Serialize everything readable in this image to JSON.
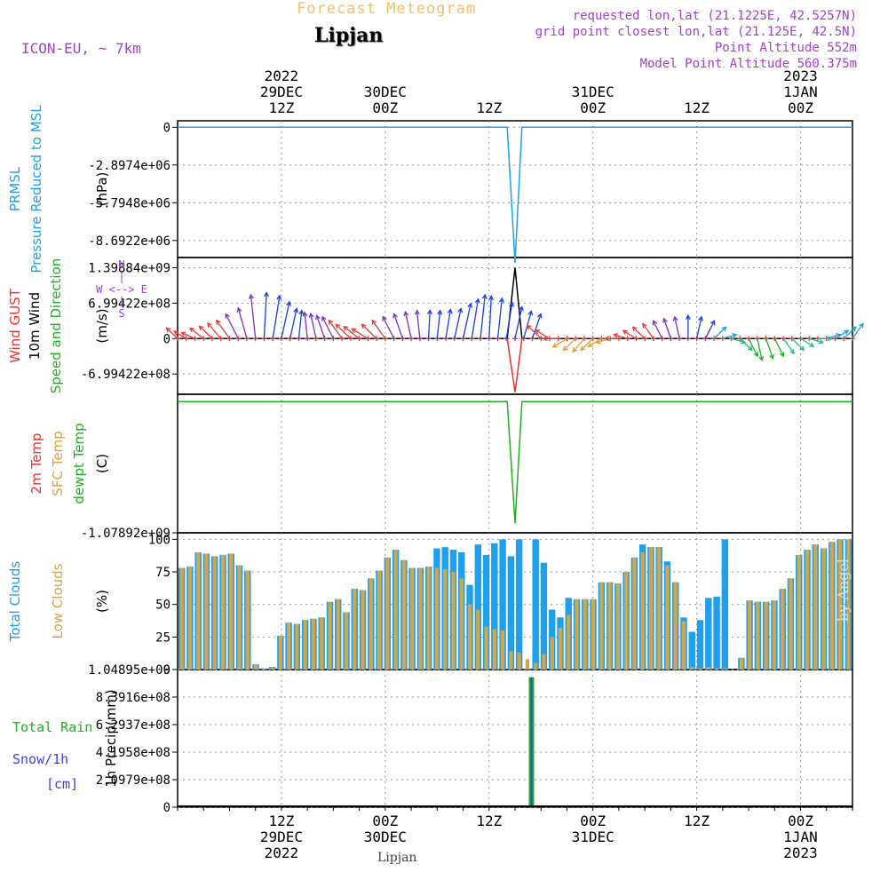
{
  "header": {
    "title": "Forecast Meteogram",
    "location": "Lipjan",
    "model": "ICON-EU, ~ 7km",
    "requested": "requested lon,lat (21.1225E, 42.5257N)",
    "closest": "grid point closest lon,lat (21.125E, 42.5N)",
    "point_alt": "Point Altitude 552m",
    "model_alt": "Model Point Altitude 560.375m",
    "footer_location": "Lipjan",
    "watermark": "by Angel"
  },
  "colors": {
    "pressure": "#1fa0ef",
    "gust": "#ef3030",
    "wind": "#000000",
    "dir": "#20b020",
    "dewpt": "#20b020",
    "total_clouds": "#1fa0ef",
    "low_clouds": "#d3a64a",
    "rain": "#20b020",
    "snow": "#4040e0",
    "compass": "#a040d0"
  },
  "time_axis": {
    "top_labels": [
      {
        "t": 12,
        "lines": [
          "2022",
          "29DEC",
          "12Z"
        ]
      },
      {
        "t": 24,
        "lines": [
          "30DEC",
          "00Z"
        ]
      },
      {
        "t": 36,
        "lines": [
          "12Z"
        ]
      },
      {
        "t": 48,
        "lines": [
          "31DEC",
          "00Z"
        ]
      },
      {
        "t": 60,
        "lines": [
          "12Z"
        ]
      },
      {
        "t": 72,
        "lines": [
          "2023",
          "1JAN",
          "00Z"
        ]
      }
    ],
    "bottom_labels": [
      {
        "t": 12,
        "lines": [
          "12Z",
          "29DEC",
          "2022"
        ]
      },
      {
        "t": 24,
        "lines": [
          "00Z",
          "30DEC"
        ]
      },
      {
        "t": 36,
        "lines": [
          "12Z"
        ]
      },
      {
        "t": 48,
        "lines": [
          "00Z",
          "31DEC"
        ]
      },
      {
        "t": 60,
        "lines": [
          "12Z"
        ]
      },
      {
        "t": 72,
        "lines": [
          "00Z",
          "1JAN",
          "2023"
        ]
      }
    ]
  },
  "chart_data": [
    {
      "type": "line",
      "title": "PRMSL Pressure Reduced to MSL",
      "side_labels": [
        "PRMSL",
        "Pressure Reduced to MSL"
      ],
      "ylabel": "(hPa)",
      "ylim": [
        -10000000,
        500000
      ],
      "yticks": [
        0,
        -2897400,
        -5794800,
        -8692200
      ],
      "ytick_labels": [
        "0",
        "-2.8974e+06",
        "-5.7948e+06",
        "-8.6922e+06"
      ],
      "x": [
        0,
        38.1,
        39,
        39.8,
        78
      ],
      "values": [
        0,
        0,
        -10400000,
        0,
        0
      ]
    },
    {
      "type": "line",
      "title": "Wind GUST 10m Wind Speed and Direction",
      "side_labels": [
        "Wind GUST",
        "10m Wind",
        "Speed and Direction"
      ],
      "ylabel": "(m/s)",
      "compass": [
        "N",
        "W <--> E",
        "S"
      ],
      "ylim": [
        -1100000000,
        1600000000
      ],
      "yticks": [
        1398840000,
        699422000,
        0,
        -699422000
      ],
      "ytick_labels": [
        "1.39884e+09",
        "6.99422e+08",
        "0",
        "-6.99422e+08"
      ],
      "gust_x": [
        0,
        38.1,
        39,
        39.8,
        78
      ],
      "gust_values": [
        0,
        0,
        -1060000000,
        0,
        0
      ],
      "wind_x": [
        0,
        38.1,
        39,
        39.8,
        78
      ],
      "wind_values": [
        0,
        0,
        1398840000,
        0,
        0
      ],
      "wind_dir_deg": [
        300,
        290,
        285,
        295,
        300,
        305,
        310,
        320,
        335,
        350,
        5,
        15,
        20,
        20,
        10,
        350,
        340,
        330,
        320,
        310,
        300,
        295,
        290,
        300,
        310,
        320,
        330,
        340,
        350,
        5,
        10,
        15,
        20,
        20,
        15,
        10,
        5,
        10,
        15,
        20,
        25,
        30,
        300,
        290,
        270,
        250,
        240,
        235,
        240,
        250,
        260,
        270,
        280,
        290,
        300,
        310,
        320,
        330,
        340,
        0,
        20,
        40,
        60,
        80,
        100,
        120,
        140,
        160,
        150,
        140,
        130,
        120,
        110,
        100,
        90,
        80,
        70,
        60,
        50
      ],
      "wind_len": [
        0.25,
        0.25,
        0.3,
        0.35,
        0.35,
        0.4,
        0.45,
        0.55,
        0.6,
        0.9,
        0.95,
        0.9,
        0.75,
        0.55,
        0.45,
        0.4,
        0.4,
        0.4,
        0.45,
        0.45,
        0.45,
        0.45,
        0.45,
        0.45,
        0.45,
        0.45,
        0.45,
        0.45,
        0.45,
        0.45,
        0.45,
        0.5,
        0.55,
        0.7,
        0.8,
        0.9,
        0.85,
        0.8,
        0.7,
        0.6,
        0.5,
        0.45,
        0.4,
        0.35,
        0.35,
        0.35,
        0.3,
        0.3,
        0.3,
        0.3,
        0.3,
        0.3,
        0.3,
        0.3,
        0.3,
        0.3,
        0.3,
        0.3,
        0.3,
        0.3,
        0.3,
        0.3,
        0.3,
        0.3,
        0.3,
        0.3,
        0.3,
        0.3,
        0.3,
        0.3,
        0.3,
        0.3,
        0.3,
        0.3,
        0.3,
        0.3,
        0.3,
        0.3,
        0.3
      ]
    },
    {
      "type": "line",
      "title": "2m Temp SFC Temp dewpt Temp",
      "side_labels": [
        "2m Temp",
        "SFC Temp",
        "dewpt Temp"
      ],
      "ylabel": "(C)",
      "ylim": [
        -1078920000,
        60000000
      ],
      "yticks": [
        -1078920000
      ],
      "ytick_labels": [
        "-1.07892e+09"
      ],
      "x": [
        0,
        38.1,
        39,
        39.8,
        78
      ],
      "values": [
        0,
        0,
        -1000000000,
        0,
        0
      ]
    },
    {
      "type": "bar",
      "title": "Total Clouds Low Clouds",
      "side_labels": [
        "Total Clouds",
        "Low Clouds"
      ],
      "ylabel": "(%)",
      "ylim": [
        0,
        105
      ],
      "yticks": [
        0,
        25,
        50,
        75,
        100
      ],
      "ytick_labels": [
        "0",
        "25",
        "50",
        "75",
        "100"
      ],
      "series": [
        {
          "name": "Total Clouds",
          "values": [
            78,
            79,
            90,
            89,
            87,
            88,
            89,
            80,
            76,
            4,
            1,
            2,
            26,
            36,
            35,
            38,
            39,
            40,
            52,
            54,
            44,
            62,
            61,
            70,
            76,
            86,
            92,
            84,
            78,
            78,
            79,
            93,
            94,
            92,
            90,
            65,
            96,
            88,
            97,
            100,
            87,
            100,
            0,
            100,
            82,
            46,
            40,
            55,
            54,
            54,
            54,
            67,
            67,
            66,
            75,
            86,
            96,
            94,
            94,
            83,
            67,
            40,
            29,
            38,
            55,
            56,
            100,
            0,
            9,
            53,
            52,
            52,
            53,
            62,
            70,
            88,
            92,
            96,
            93,
            98,
            100,
            100
          ]
        },
        {
          "name": "Low Clouds",
          "values": [
            78,
            79,
            90,
            89,
            87,
            88,
            89,
            80,
            76,
            4,
            1,
            2,
            26,
            36,
            35,
            38,
            39,
            40,
            52,
            54,
            44,
            62,
            61,
            70,
            76,
            86,
            92,
            84,
            78,
            78,
            79,
            78,
            77,
            75,
            70,
            50,
            46,
            33,
            31,
            30,
            14,
            13,
            8,
            5,
            12,
            25,
            32,
            42,
            54,
            54,
            54,
            67,
            67,
            66,
            75,
            86,
            90,
            94,
            94,
            80,
            67,
            37,
            2,
            1,
            2,
            1,
            1,
            0,
            9,
            53,
            52,
            52,
            53,
            62,
            70,
            88,
            92,
            96,
            93,
            98,
            100,
            100
          ]
        }
      ]
    },
    {
      "type": "bar",
      "title": "Total Rain Snow/1h [cm]",
      "side_labels": [
        "Total Rain",
        "Snow/1h",
        "[cm]"
      ],
      "ylabel": "1h Precip(mm)",
      "ylim": [
        0,
        1048950000
      ],
      "yticks": [
        0,
        209790000,
        419580000,
        629370000,
        839160000,
        1048950000
      ],
      "ytick_labels": [
        "0",
        "2.0979e+08",
        "4.1958e+08",
        "6.2937e+08",
        "8.3916e+08",
        "1.04895e+09"
      ],
      "x": [
        40.9
      ],
      "rain_values": [
        990000000
      ],
      "snow_values": [
        990000000
      ]
    }
  ]
}
